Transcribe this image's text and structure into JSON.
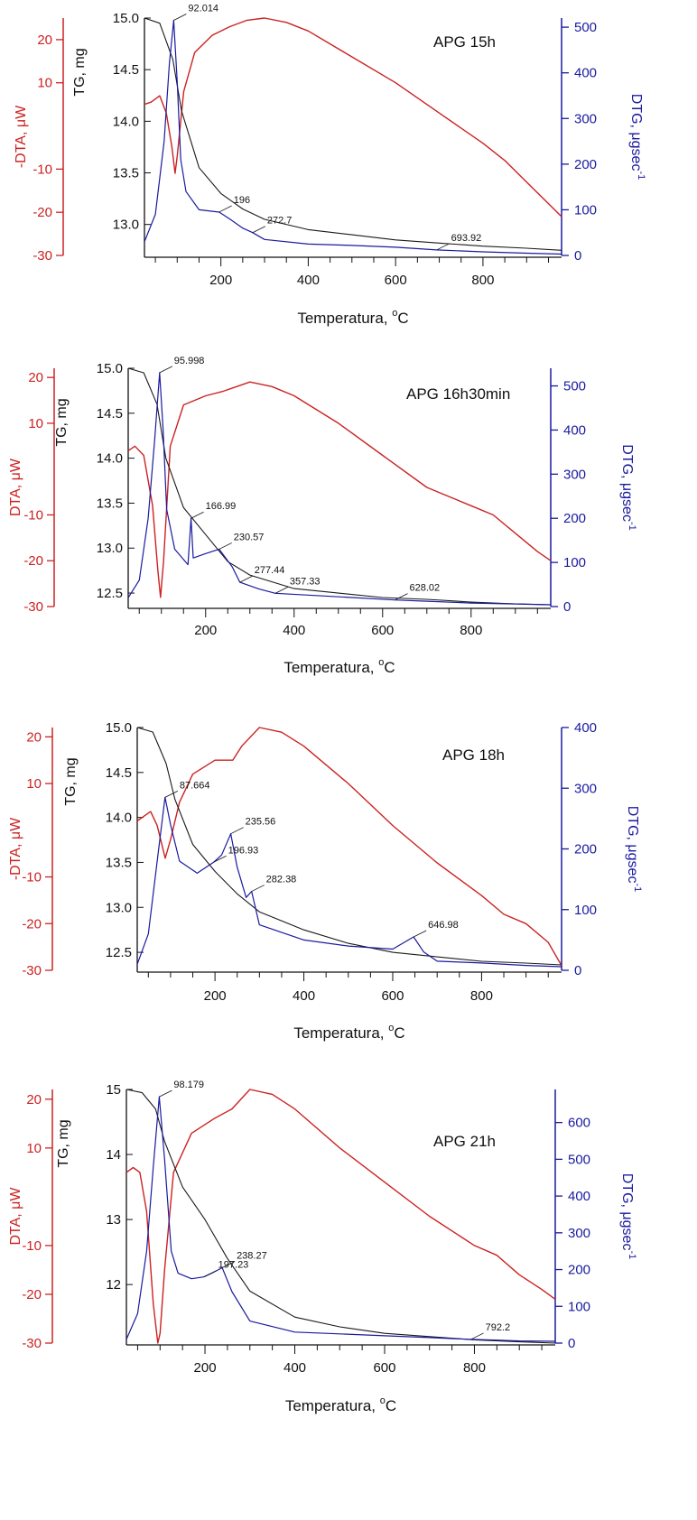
{
  "colors": {
    "dta": "#cc2222",
    "dtg": "#1a1aa0",
    "tg": "#1a1a1a"
  },
  "chart_data": [
    {
      "type": "line",
      "title": "APG 15h",
      "xlabel": "Temperatura, ",
      "xlabel_sup": "o",
      "xlabel_tail": "C",
      "xlim": [
        25,
        980
      ],
      "x_ticks": [
        "200",
        "400",
        "600",
        "800"
      ],
      "tg": {
        "label": "TG, mg",
        "lim": [
          12.7,
          15.0
        ],
        "ticks": [
          "13.0",
          "13.5",
          "14.0",
          "14.5",
          "15.0"
        ],
        "line_x": [
          25,
          60,
          90,
          110,
          150,
          200,
          250,
          300,
          400,
          500,
          600,
          700,
          800,
          900,
          980
        ],
        "line_y": [
          15.0,
          14.95,
          14.6,
          14.1,
          13.55,
          13.3,
          13.15,
          13.05,
          12.95,
          12.9,
          12.85,
          12.82,
          12.79,
          12.77,
          12.75
        ]
      },
      "dta": {
        "label": "-DTA, μW",
        "lim": [
          -30,
          25
        ],
        "ticks": [
          "-30",
          "-20",
          "-10",
          "10",
          "20"
        ],
        "line_x": [
          25,
          40,
          60,
          75,
          88,
          95,
          100,
          115,
          140,
          180,
          220,
          260,
          300,
          350,
          400,
          500,
          600,
          700,
          800,
          850,
          900,
          950,
          980
        ],
        "line_y": [
          5,
          5.5,
          7,
          3,
          -5,
          -11,
          -7,
          8,
          17,
          21,
          23,
          24.5,
          25,
          24,
          22,
          16,
          10,
          3,
          -4,
          -8,
          -13,
          -18,
          -21
        ]
      },
      "dtg": {
        "label": "DTG, μgsec",
        "label_sup": "-1",
        "lim": [
          0,
          520
        ],
        "ticks": [
          "0",
          "100",
          "200",
          "300",
          "400",
          "500"
        ],
        "line_x": [
          25,
          50,
          70,
          82,
          92,
          100,
          108,
          120,
          150,
          196,
          220,
          250,
          272.7,
          300,
          400,
          500,
          600,
          693.92,
          800,
          900,
          980
        ],
        "line_y": [
          30,
          90,
          250,
          420,
          515,
          380,
          210,
          140,
          100,
          95,
          80,
          60,
          50,
          35,
          25,
          22,
          18,
          12,
          8,
          5,
          3
        ]
      },
      "annotations": [
        {
          "text": "92.014",
          "x": 92,
          "series": "dtg",
          "y": 515
        },
        {
          "text": "196",
          "x": 196,
          "series": "dtg",
          "y": 95
        },
        {
          "text": "272.7",
          "x": 272.7,
          "series": "dtg",
          "y": 50
        },
        {
          "text": "693.92",
          "x": 693.92,
          "series": "dtg",
          "y": 12
        }
      ]
    },
    {
      "type": "line",
      "title": "APG 16h30min",
      "xlabel": "Temperatura, ",
      "xlabel_sup": "o",
      "xlabel_tail": "C",
      "xlim": [
        25,
        980
      ],
      "x_ticks": [
        "200",
        "400",
        "600",
        "800"
      ],
      "tg": {
        "label": "TG, mg",
        "lim": [
          12.35,
          15.0
        ],
        "ticks": [
          "12.5",
          "13.0",
          "13.5",
          "14.0",
          "14.5",
          "15.0"
        ],
        "line_x": [
          25,
          60,
          90,
          110,
          150,
          200,
          250,
          300,
          400,
          500,
          600,
          700,
          800,
          900,
          980
        ],
        "line_y": [
          15.0,
          14.95,
          14.6,
          14.0,
          13.45,
          13.15,
          12.85,
          12.7,
          12.55,
          12.5,
          12.45,
          12.43,
          12.4,
          12.38,
          12.37
        ]
      },
      "dta": {
        "label": "DTA, μW",
        "lim": [
          -30,
          22
        ],
        "ticks": [
          "-30",
          "-20",
          "-10",
          "10",
          "20"
        ],
        "line_x": [
          25,
          40,
          60,
          80,
          92,
          98,
          105,
          120,
          150,
          200,
          240,
          300,
          350,
          400,
          500,
          600,
          700,
          800,
          850,
          900,
          950,
          980
        ],
        "line_y": [
          4,
          5,
          3,
          -8,
          -22,
          -28,
          -20,
          5,
          14,
          16,
          17,
          19,
          18,
          16,
          10,
          3,
          -4,
          -8,
          -10,
          -14,
          -18,
          -20
        ]
      },
      "dtg": {
        "label": "DTG, μgsec",
        "label_sup": "-1",
        "lim": [
          0,
          540
        ],
        "ticks": [
          "0",
          "100",
          "200",
          "300",
          "400",
          "500"
        ],
        "line_x": [
          25,
          50,
          70,
          85,
          96,
          104,
          112,
          130,
          160,
          166.99,
          172,
          200,
          230.57,
          260,
          277.44,
          320,
          357.33,
          450,
          628.02,
          700,
          800,
          900,
          980
        ],
        "line_y": [
          20,
          60,
          200,
          380,
          530,
          400,
          220,
          130,
          95,
          200,
          110,
          120,
          130,
          90,
          55,
          40,
          30,
          25,
          15,
          12,
          8,
          6,
          4
        ]
      },
      "annotations": [
        {
          "text": "95.998",
          "x": 96,
          "series": "dtg",
          "y": 530
        },
        {
          "text": "166.99",
          "x": 166.99,
          "series": "dtg",
          "y": 200
        },
        {
          "text": "230.57",
          "x": 230.57,
          "series": "dtg",
          "y": 130
        },
        {
          "text": "277.44",
          "x": 277.44,
          "series": "dtg",
          "y": 55
        },
        {
          "text": "357.33",
          "x": 357.33,
          "series": "dtg",
          "y": 30
        },
        {
          "text": "628.02",
          "x": 628.02,
          "series": "dtg",
          "y": 15
        }
      ]
    },
    {
      "type": "line",
      "title": "APG 18h",
      "xlabel": "Temperatura, ",
      "xlabel_sup": "o",
      "xlabel_tail": "C",
      "xlim": [
        25,
        980
      ],
      "x_ticks": [
        "200",
        "400",
        "600",
        "800"
      ],
      "tg": {
        "label": "TG, mg",
        "lim": [
          12.3,
          15.0
        ],
        "ticks": [
          "12.5",
          "13.0",
          "13.5",
          "14.0",
          "14.5",
          "15.0"
        ],
        "line_x": [
          25,
          60,
          90,
          110,
          150,
          200,
          250,
          300,
          400,
          500,
          600,
          700,
          800,
          900,
          980
        ],
        "line_y": [
          15.0,
          14.95,
          14.6,
          14.2,
          13.7,
          13.4,
          13.15,
          12.95,
          12.75,
          12.6,
          12.5,
          12.45,
          12.4,
          12.38,
          12.36
        ]
      },
      "dta": {
        "label": "-DTA, μW",
        "lim": [
          -30,
          22
        ],
        "ticks": [
          "-30",
          "-20",
          "-10",
          "10",
          "20"
        ],
        "line_x": [
          25,
          40,
          55,
          70,
          88,
          100,
          120,
          150,
          200,
          240,
          260,
          300,
          350,
          400,
          500,
          600,
          700,
          800,
          850,
          900,
          950,
          980
        ],
        "line_y": [
          2,
          3,
          4,
          1,
          -6,
          -2,
          6,
          12,
          15,
          15,
          18,
          22,
          21,
          18,
          10,
          1,
          -7,
          -14,
          -18,
          -20,
          -24,
          -29
        ]
      },
      "dtg": {
        "label": "DTG, μgsec",
        "label_sup": "-1",
        "lim": [
          0,
          400
        ],
        "ticks": [
          "0",
          "100",
          "200",
          "300",
          "400"
        ],
        "line_x": [
          25,
          50,
          70,
          87.664,
          100,
          120,
          160,
          196.93,
          215,
          235.56,
          250,
          270,
          282.38,
          300,
          400,
          500,
          600,
          646.98,
          670,
          700,
          800,
          900,
          980
        ],
        "line_y": [
          10,
          60,
          180,
          285,
          240,
          180,
          160,
          178,
          190,
          225,
          170,
          120,
          130,
          75,
          50,
          40,
          35,
          55,
          30,
          15,
          12,
          8,
          6
        ]
      },
      "annotations": [
        {
          "text": "87.664",
          "x": 87.664,
          "series": "dtg",
          "y": 285
        },
        {
          "text": "196.93",
          "x": 196.93,
          "series": "dtg",
          "y": 178
        },
        {
          "text": "235.56",
          "x": 235.56,
          "series": "dtg",
          "y": 225
        },
        {
          "text": "282.38",
          "x": 282.38,
          "series": "dtg",
          "y": 130
        },
        {
          "text": "646.98",
          "x": 646.98,
          "series": "dtg",
          "y": 55
        }
      ]
    },
    {
      "type": "line",
      "title": "APG 21h",
      "xlabel": "Temperatura, ",
      "xlabel_sup": "o",
      "xlabel_tail": "C",
      "xlim": [
        25,
        980
      ],
      "x_ticks": [
        "200",
        "400",
        "600",
        "800"
      ],
      "tg": {
        "label": "TG, mg",
        "lim": [
          11.1,
          15.0
        ],
        "ticks": [
          "12",
          "13",
          "14",
          "15"
        ],
        "line_x": [
          25,
          60,
          90,
          110,
          150,
          200,
          250,
          300,
          400,
          500,
          600,
          700,
          800,
          900,
          980
        ],
        "line_y": [
          15.0,
          14.95,
          14.7,
          14.2,
          13.5,
          13.0,
          12.4,
          11.9,
          11.5,
          11.35,
          11.25,
          11.2,
          11.15,
          11.12,
          11.1
        ]
      },
      "dta": {
        "label": "DTA, μW",
        "lim": [
          -30,
          22
        ],
        "ticks": [
          "-30",
          "-20",
          "-10",
          "10",
          "20"
        ],
        "line_x": [
          25,
          40,
          55,
          70,
          85,
          95,
          100,
          110,
          130,
          170,
          220,
          260,
          300,
          350,
          400,
          500,
          600,
          700,
          800,
          850,
          900,
          950,
          980
        ],
        "line_y": [
          5,
          6,
          5,
          -3,
          -22,
          -30,
          -28,
          -15,
          5,
          13,
          16,
          18,
          22,
          21,
          18,
          10,
          3,
          -4,
          -10,
          -12,
          -16,
          -19,
          -21
        ]
      },
      "dtg": {
        "label": "DTG, μgsec",
        "label_sup": "-1",
        "lim": [
          0,
          690
        ],
        "ticks": [
          "0",
          "100",
          "200",
          "300",
          "400",
          "500",
          "600"
        ],
        "line_x": [
          25,
          50,
          70,
          85,
          98.179,
          110,
          125,
          140,
          170,
          197.23,
          215,
          238.27,
          260,
          300,
          400,
          500,
          600,
          700,
          792.2,
          850,
          900,
          980
        ],
        "line_y": [
          10,
          80,
          250,
          480,
          670,
          500,
          250,
          190,
          175,
          180,
          190,
          205,
          140,
          60,
          30,
          25,
          20,
          15,
          10,
          8,
          6,
          5
        ]
      },
      "annotations": [
        {
          "text": "98.179",
          "x": 98.179,
          "series": "dtg",
          "y": 670
        },
        {
          "text": "197.23",
          "x": 197.23,
          "series": "dtg",
          "y": 180
        },
        {
          "text": "238.27",
          "x": 238.27,
          "series": "dtg",
          "y": 205
        },
        {
          "text": "792.2",
          "x": 792.2,
          "series": "dtg",
          "y": 10
        }
      ]
    }
  ]
}
